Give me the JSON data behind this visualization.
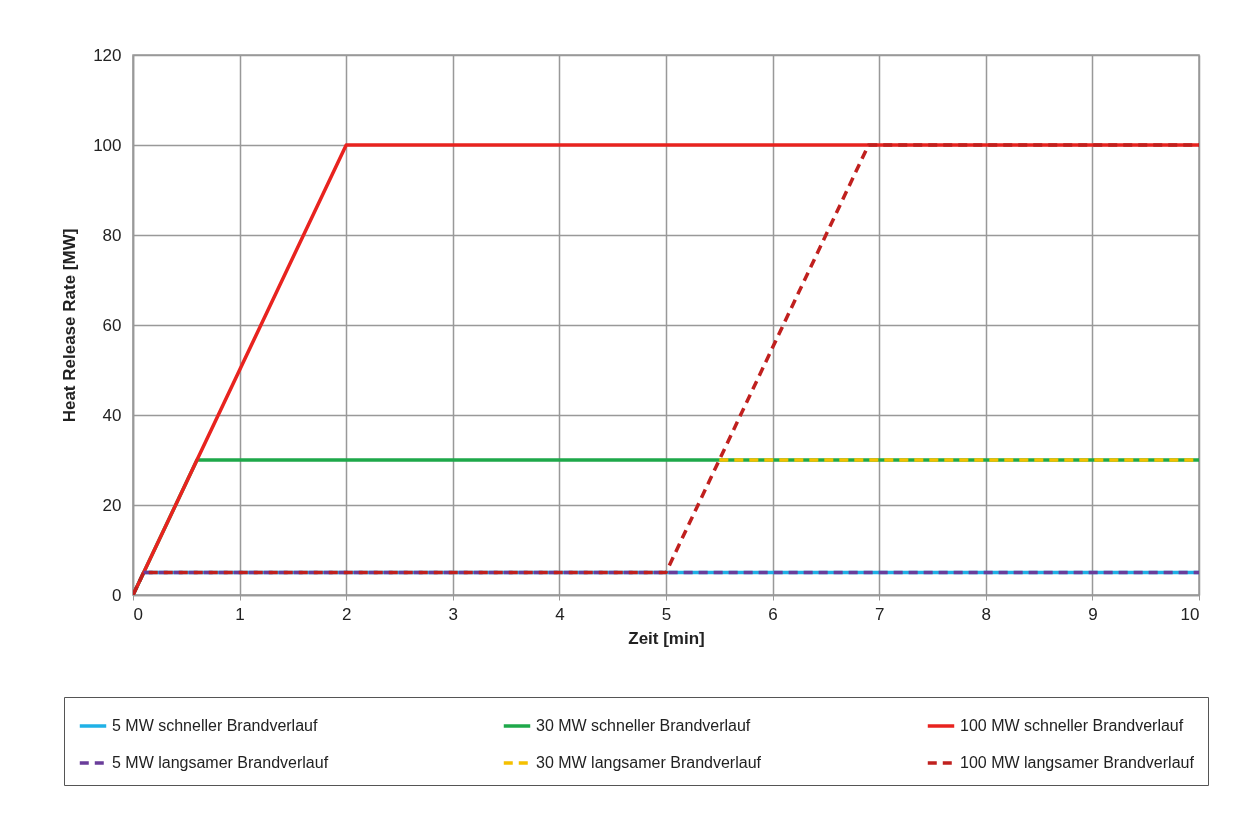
{
  "chart_data": {
    "type": "line",
    "xlabel": "Zeit [min]",
    "ylabel": "Heat  Release Rate [MW]",
    "xlim": [
      0,
      10
    ],
    "xticks": [
      0,
      1,
      2,
      3,
      4,
      5,
      6,
      7,
      8,
      9,
      10
    ],
    "ylim": [
      0,
      120
    ],
    "yticks": [
      0,
      20,
      40,
      60,
      80,
      100,
      120
    ],
    "grid": true,
    "legend": "bottom",
    "series": [
      {
        "name": "5 MW schneller Brandverlauf",
        "color": "#1fb1e6",
        "line_style": "solid",
        "x": [
          0,
          0.1,
          10
        ],
        "values": [
          0,
          5,
          5
        ]
      },
      {
        "name": "30 MW schneller Brandverlauf",
        "color": "#1ea84a",
        "line_style": "solid",
        "x": [
          0,
          0.6,
          10
        ],
        "values": [
          0,
          30,
          30
        ]
      },
      {
        "name": "100 MW schneller Brandverlauf",
        "color": "#e8231f",
        "line_style": "solid",
        "x": [
          0,
          2,
          10
        ],
        "values": [
          0,
          100,
          100
        ]
      },
      {
        "name": "5 MW langsamer Brandverlauf",
        "color": "#6a3d9a",
        "line_style": "dashed",
        "x": [
          0.1,
          10
        ],
        "values": [
          5,
          5
        ]
      },
      {
        "name": "30 MW langsamer Brandverlauf",
        "color": "#f5c000",
        "line_style": "dashed",
        "x": [
          5.5,
          10
        ],
        "values": [
          30,
          30
        ]
      },
      {
        "name": "100 MW langsamer Brandverlauf",
        "color": "#c0201e",
        "line_style": "dashed",
        "x": [
          0,
          0.1,
          5,
          6.9,
          10
        ],
        "values": [
          0,
          5,
          5,
          100,
          100
        ]
      }
    ]
  }
}
